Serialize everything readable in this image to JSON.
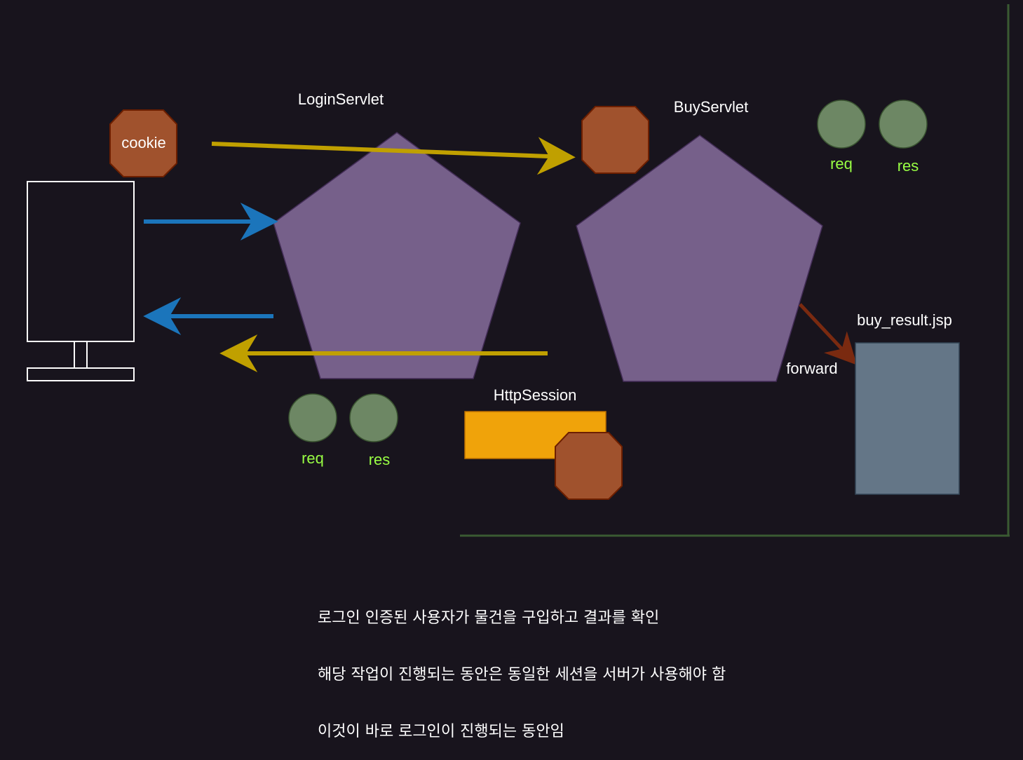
{
  "colors": {
    "background": "#18141d",
    "servlet": "#76608a",
    "octagon": "#a0522d",
    "octagon_stroke": "#6d1f00",
    "circle": "#6d8764",
    "circle_stroke": "#3a5431",
    "green_text": "#99ff44",
    "session_box": "#f0a30a",
    "jsp_box": "#647687",
    "blue_arrow": "#1b75bb",
    "yellow_arrow": "#c0a000",
    "red_arrow": "#7a2a10",
    "border": "#3a5a32"
  },
  "labels": {
    "cookie": "cookie",
    "login_servlet": "LoginServlet",
    "buy_servlet": "BuyServlet",
    "http_session": "HttpSession",
    "buy_result": "buy_result.jsp",
    "forward": "forward",
    "login_req": "req",
    "login_res": "res",
    "buy_req": "req",
    "buy_res": "res"
  },
  "caption": {
    "line1": "로그인 인증된 사용자가 물건을 구입하고 결과를 확인",
    "line2": "해당 작업이 진행되는 동안은 동일한 세션을 서버가 사용해야 함",
    "line3": "이것이 바로 로그인이 진행되는 동안임"
  }
}
